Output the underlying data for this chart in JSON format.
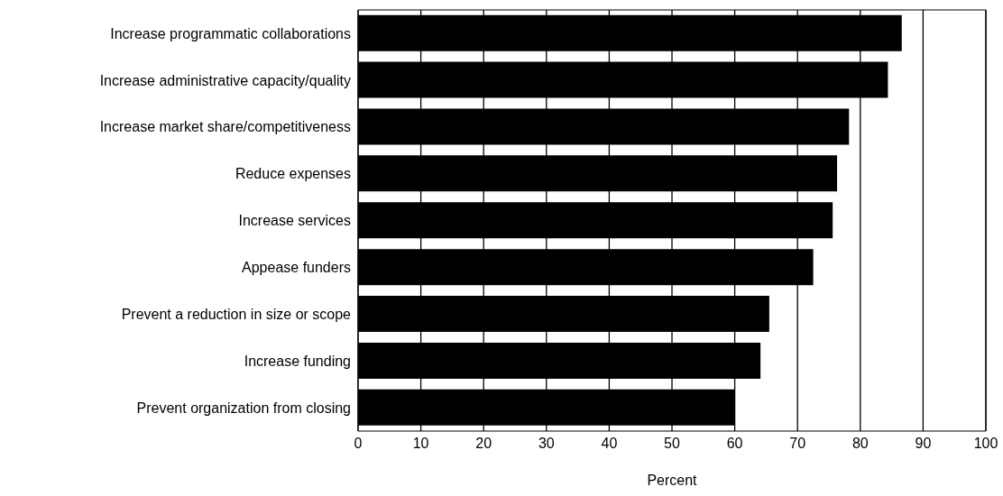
{
  "chart_data": {
    "type": "bar",
    "orientation": "horizontal",
    "xlabel": "Percent",
    "categories": [
      "Increase programmatic collaborations",
      "Increase administrative capacity/quality",
      "Increase market share/competitiveness",
      "Reduce expenses",
      "Increase services",
      "Appease funders",
      "Prevent a reduction in size or scope",
      "Increase funding",
      "Prevent organization from closing"
    ],
    "values": [
      86.6,
      84.4,
      78.2,
      76.3,
      75.6,
      72.5,
      65.5,
      64.1,
      60.0
    ],
    "color": "#000000",
    "xlim": [
      0,
      100
    ],
    "xticks": [
      0,
      10,
      20,
      30,
      40,
      50,
      60,
      70,
      80,
      90,
      100
    ],
    "grid": "x"
  }
}
